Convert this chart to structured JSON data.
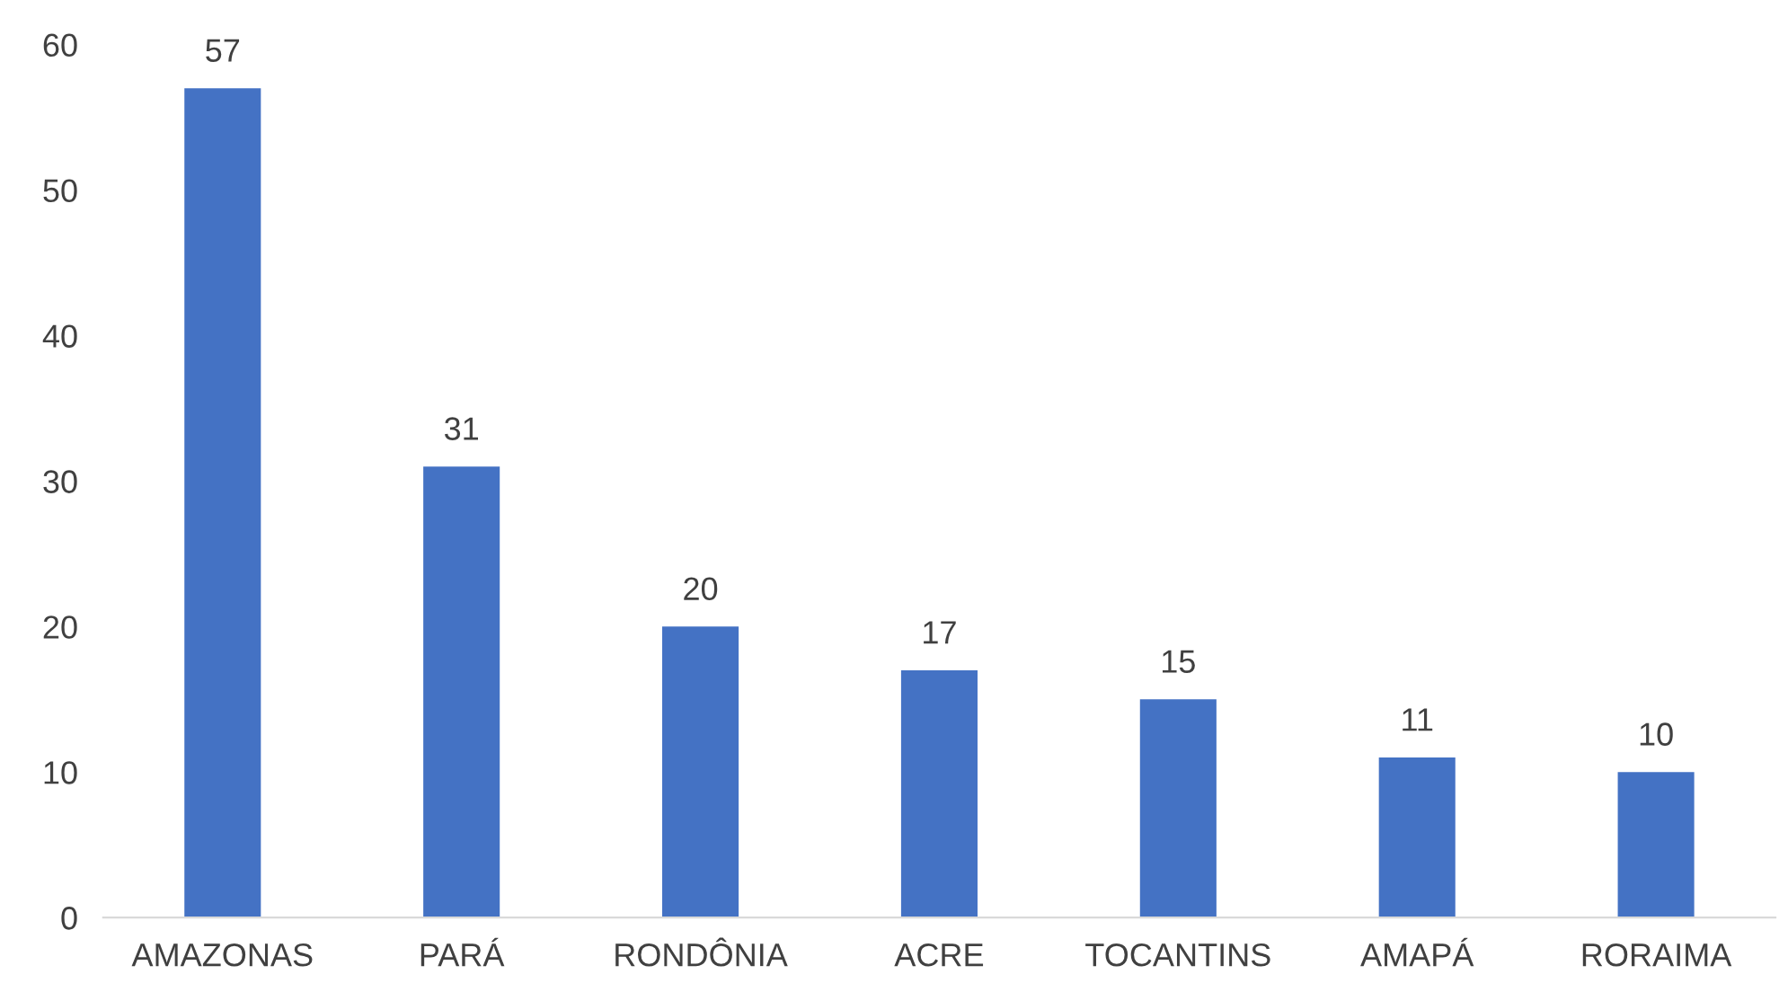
{
  "chart_data": {
    "type": "bar",
    "categories": [
      "AMAZONAS",
      "PARÁ",
      "RONDÔNIA",
      "ACRE",
      "TOCANTINS",
      "AMAPÁ",
      "RORAIMA"
    ],
    "values": [
      57,
      31,
      20,
      17,
      15,
      11,
      10
    ],
    "color": "#4472c4",
    "ylim": [
      0,
      60
    ],
    "yticks": [
      0,
      10,
      20,
      30,
      40,
      50,
      60
    ],
    "grid": false,
    "data_labels": true
  }
}
